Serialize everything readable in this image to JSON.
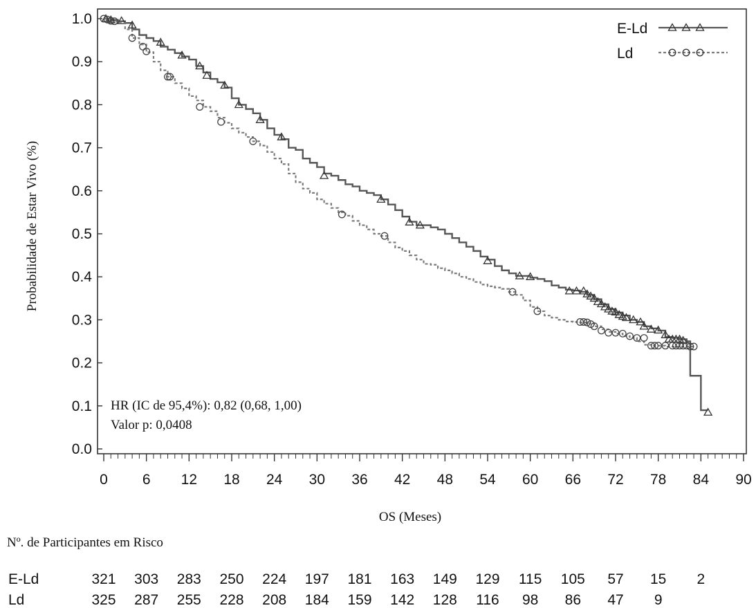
{
  "chart_data": {
    "type": "line",
    "subtype": "kaplan-meier",
    "title": "",
    "xlabel": "OS (Meses)",
    "ylabel": "Probabilidade de Estar Vivo (%)",
    "xlim": [
      0,
      90
    ],
    "ylim": [
      0,
      1.0
    ],
    "x_ticks": [
      "0",
      "6",
      "12",
      "18",
      "24",
      "30",
      "36",
      "42",
      "48",
      "54",
      "60",
      "66",
      "72",
      "78",
      "84",
      "90"
    ],
    "y_ticks": [
      "0.0",
      "0.1",
      "0.2",
      "0.3",
      "0.4",
      "0.5",
      "0.6",
      "0.7",
      "0.8",
      "0.9",
      "1.0"
    ],
    "grid": false,
    "legend_position": "top-right",
    "annotation": {
      "hr": "HR (IC de 95,4%): 0,82 (0,68, 1,00)",
      "p": "Valor p:  0,0408"
    },
    "series": [
      {
        "name": "E-Ld",
        "color": "#555555",
        "line_style": "solid",
        "marker": "triangle",
        "points": [
          [
            0,
            1.0
          ],
          [
            1,
            0.997
          ],
          [
            2,
            0.994
          ],
          [
            3,
            0.99
          ],
          [
            4,
            0.975
          ],
          [
            5,
            0.962
          ],
          [
            6,
            0.955
          ],
          [
            7,
            0.948
          ],
          [
            8,
            0.935
          ],
          [
            9,
            0.928
          ],
          [
            10,
            0.92
          ],
          [
            11,
            0.912
          ],
          [
            12,
            0.905
          ],
          [
            13,
            0.89
          ],
          [
            14,
            0.875
          ],
          [
            15,
            0.86
          ],
          [
            16,
            0.852
          ],
          [
            17,
            0.84
          ],
          [
            18,
            0.815
          ],
          [
            19,
            0.8
          ],
          [
            20,
            0.79
          ],
          [
            21,
            0.78
          ],
          [
            22,
            0.765
          ],
          [
            23,
            0.745
          ],
          [
            24,
            0.73
          ],
          [
            25,
            0.72
          ],
          [
            26,
            0.7
          ],
          [
            27,
            0.695
          ],
          [
            28,
            0.675
          ],
          [
            29,
            0.665
          ],
          [
            30,
            0.655
          ],
          [
            31,
            0.64
          ],
          [
            32,
            0.635
          ],
          [
            33,
            0.625
          ],
          [
            34,
            0.615
          ],
          [
            35,
            0.61
          ],
          [
            36,
            0.6
          ],
          [
            37,
            0.595
          ],
          [
            38,
            0.59
          ],
          [
            39,
            0.58
          ],
          [
            40,
            0.568
          ],
          [
            41,
            0.555
          ],
          [
            42,
            0.54
          ],
          [
            43,
            0.528
          ],
          [
            44,
            0.52
          ],
          [
            45,
            0.52
          ],
          [
            46,
            0.515
          ],
          [
            47,
            0.51
          ],
          [
            48,
            0.5
          ],
          [
            49,
            0.49
          ],
          [
            50,
            0.48
          ],
          [
            51,
            0.47
          ],
          [
            52,
            0.46
          ],
          [
            53,
            0.447
          ],
          [
            54,
            0.44
          ],
          [
            55,
            0.425
          ],
          [
            56,
            0.415
          ],
          [
            57,
            0.408
          ],
          [
            58,
            0.402
          ],
          [
            59,
            0.402
          ],
          [
            60,
            0.398
          ],
          [
            61,
            0.395
          ],
          [
            62,
            0.39
          ],
          [
            63,
            0.38
          ],
          [
            64,
            0.375
          ],
          [
            65,
            0.37
          ],
          [
            66,
            0.368
          ],
          [
            67,
            0.365
          ],
          [
            68,
            0.358
          ],
          [
            69,
            0.348
          ],
          [
            70,
            0.336
          ],
          [
            71,
            0.325
          ],
          [
            72,
            0.317
          ],
          [
            73,
            0.31
          ],
          [
            74,
            0.3
          ],
          [
            75,
            0.295
          ],
          [
            76,
            0.285
          ],
          [
            77,
            0.28
          ],
          [
            78,
            0.275
          ],
          [
            79,
            0.26
          ],
          [
            80,
            0.258
          ],
          [
            81,
            0.255
          ],
          [
            82,
            0.25
          ],
          [
            82.5,
            0.17
          ],
          [
            84,
            0.17
          ],
          [
            84,
            0.09
          ],
          [
            85,
            0.09
          ]
        ],
        "markers_at": [
          [
            0.3,
            1.0
          ],
          [
            1,
            0.997
          ],
          [
            2.5,
            0.995
          ],
          [
            4,
            0.985
          ],
          [
            8,
            0.945
          ],
          [
            11,
            0.915
          ],
          [
            13.5,
            0.89
          ],
          [
            14.5,
            0.868
          ],
          [
            17,
            0.845
          ],
          [
            19,
            0.8
          ],
          [
            22,
            0.765
          ],
          [
            25,
            0.725
          ],
          [
            31,
            0.635
          ],
          [
            39,
            0.58
          ],
          [
            43,
            0.527
          ],
          [
            44.5,
            0.52
          ],
          [
            54,
            0.437
          ],
          [
            58.5,
            0.402
          ],
          [
            60,
            0.4
          ],
          [
            65.5,
            0.367
          ],
          [
            66.5,
            0.367
          ],
          [
            67.5,
            0.367
          ],
          [
            68,
            0.36
          ],
          [
            68.5,
            0.355
          ],
          [
            69,
            0.35
          ],
          [
            69.5,
            0.342
          ],
          [
            70,
            0.337
          ],
          [
            70.5,
            0.33
          ],
          [
            71,
            0.325
          ],
          [
            71.5,
            0.32
          ],
          [
            72,
            0.318
          ],
          [
            72.5,
            0.312
          ],
          [
            73,
            0.308
          ],
          [
            73.5,
            0.305
          ],
          [
            74.5,
            0.3
          ],
          [
            75.5,
            0.295
          ],
          [
            76,
            0.285
          ],
          [
            77,
            0.278
          ],
          [
            78,
            0.276
          ],
          [
            79,
            0.265
          ],
          [
            79.5,
            0.255
          ],
          [
            80,
            0.255
          ],
          [
            80.5,
            0.255
          ],
          [
            81,
            0.255
          ],
          [
            81.5,
            0.252
          ],
          [
            85,
            0.085
          ]
        ]
      },
      {
        "name": "Ld",
        "color": "#7a7a7a",
        "line_style": "dashed",
        "marker": "circle",
        "points": [
          [
            0,
            1.0
          ],
          [
            1,
            0.993
          ],
          [
            2,
            0.99
          ],
          [
            3,
            0.975
          ],
          [
            4,
            0.955
          ],
          [
            5,
            0.94
          ],
          [
            6,
            0.922
          ],
          [
            7,
            0.9
          ],
          [
            8,
            0.88
          ],
          [
            9,
            0.865
          ],
          [
            10,
            0.85
          ],
          [
            11,
            0.838
          ],
          [
            12,
            0.82
          ],
          [
            13,
            0.81
          ],
          [
            14,
            0.795
          ],
          [
            15,
            0.785
          ],
          [
            16,
            0.77
          ],
          [
            17,
            0.758
          ],
          [
            18,
            0.745
          ],
          [
            19,
            0.735
          ],
          [
            20,
            0.725
          ],
          [
            21,
            0.715
          ],
          [
            22,
            0.705
          ],
          [
            23,
            0.69
          ],
          [
            24,
            0.675
          ],
          [
            25,
            0.662
          ],
          [
            26,
            0.64
          ],
          [
            27,
            0.62
          ],
          [
            28,
            0.605
          ],
          [
            29,
            0.595
          ],
          [
            30,
            0.58
          ],
          [
            31,
            0.57
          ],
          [
            32,
            0.56
          ],
          [
            33,
            0.55
          ],
          [
            34,
            0.542
          ],
          [
            35,
            0.53
          ],
          [
            36,
            0.52
          ],
          [
            37,
            0.51
          ],
          [
            38,
            0.5
          ],
          [
            39,
            0.495
          ],
          [
            40,
            0.48
          ],
          [
            41,
            0.468
          ],
          [
            42,
            0.46
          ],
          [
            43,
            0.45
          ],
          [
            44,
            0.44
          ],
          [
            45,
            0.43
          ],
          [
            46,
            0.428
          ],
          [
            47,
            0.42
          ],
          [
            48,
            0.415
          ],
          [
            49,
            0.408
          ],
          [
            50,
            0.4
          ],
          [
            51,
            0.395
          ],
          [
            52,
            0.388
          ],
          [
            53,
            0.382
          ],
          [
            54,
            0.378
          ],
          [
            55,
            0.375
          ],
          [
            56,
            0.372
          ],
          [
            57,
            0.365
          ],
          [
            58,
            0.358
          ],
          [
            59,
            0.345
          ],
          [
            60,
            0.33
          ],
          [
            61,
            0.32
          ],
          [
            62,
            0.31
          ],
          [
            63,
            0.305
          ],
          [
            64,
            0.3
          ],
          [
            65,
            0.296
          ],
          [
            66,
            0.295
          ],
          [
            67,
            0.294
          ],
          [
            68,
            0.292
          ],
          [
            69,
            0.285
          ],
          [
            70,
            0.278
          ],
          [
            71,
            0.272
          ],
          [
            72,
            0.268
          ],
          [
            73,
            0.262
          ],
          [
            74,
            0.258
          ],
          [
            75,
            0.25
          ],
          [
            76,
            0.242
          ],
          [
            77,
            0.24
          ],
          [
            78,
            0.24
          ],
          [
            79,
            0.238
          ],
          [
            80,
            0.238
          ],
          [
            81,
            0.238
          ],
          [
            82,
            0.238
          ],
          [
            83,
            0.238
          ]
        ],
        "markers_at": [
          [
            0,
            1.0
          ],
          [
            0.5,
            0.998
          ],
          [
            1,
            0.995
          ],
          [
            1.5,
            0.994
          ],
          [
            4,
            0.955
          ],
          [
            5.5,
            0.935
          ],
          [
            6,
            0.924
          ],
          [
            9,
            0.865
          ],
          [
            9.3,
            0.865
          ],
          [
            13.5,
            0.795
          ],
          [
            16.5,
            0.76
          ],
          [
            21,
            0.715
          ],
          [
            33.5,
            0.545
          ],
          [
            39.5,
            0.495
          ],
          [
            57.5,
            0.365
          ],
          [
            61,
            0.32
          ],
          [
            67,
            0.295
          ],
          [
            67.5,
            0.295
          ],
          [
            68,
            0.294
          ],
          [
            68.5,
            0.29
          ],
          [
            69,
            0.285
          ],
          [
            70,
            0.275
          ],
          [
            71,
            0.27
          ],
          [
            72,
            0.27
          ],
          [
            73,
            0.268
          ],
          [
            74,
            0.262
          ],
          [
            75,
            0.258
          ],
          [
            76,
            0.258
          ],
          [
            77,
            0.24
          ],
          [
            77.5,
            0.24
          ],
          [
            78,
            0.24
          ],
          [
            79,
            0.24
          ],
          [
            80,
            0.24
          ],
          [
            80.5,
            0.24
          ],
          [
            81,
            0.24
          ],
          [
            81.5,
            0.24
          ],
          [
            82,
            0.24
          ],
          [
            82.5,
            0.238
          ],
          [
            83,
            0.238
          ]
        ]
      }
    ]
  },
  "at_risk": {
    "title": "Nº. de Participantes em Risco",
    "rows": [
      {
        "label": "E-Ld",
        "values": [
          "321",
          "303",
          "283",
          "250",
          "224",
          "197",
          "181",
          "163",
          "149",
          "129",
          "115",
          "105",
          "57",
          "15",
          "2"
        ]
      },
      {
        "label": "Ld",
        "values": [
          "325",
          "287",
          "255",
          "228",
          "208",
          "184",
          "159",
          "142",
          "128",
          "116",
          "98",
          "86",
          "47",
          "9"
        ]
      }
    ]
  }
}
